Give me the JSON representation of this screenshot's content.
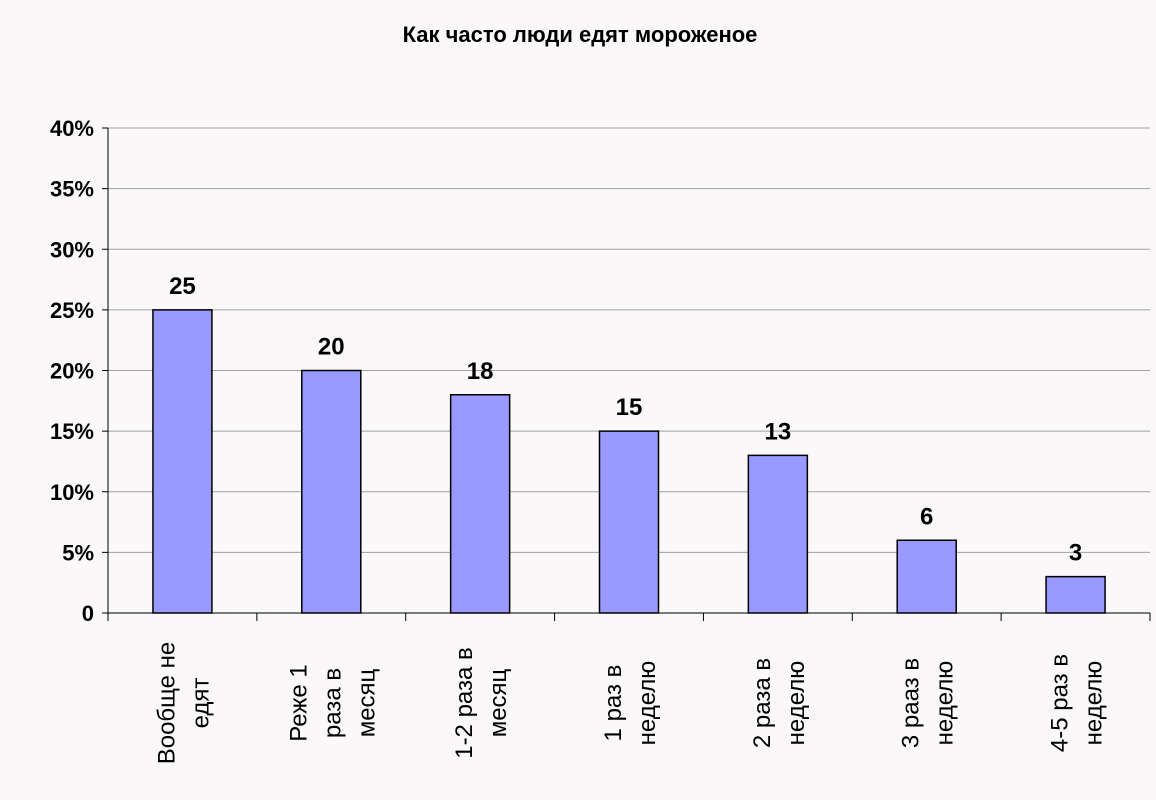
{
  "chart_data": {
    "type": "bar",
    "title": "Как часто люди едят мороженое",
    "categories": [
      [
        "Вообще не",
        "едят"
      ],
      [
        "Реже 1",
        "раза в",
        "месяц"
      ],
      [
        "1-2 раза в",
        "месяц"
      ],
      [
        "1 раз в",
        "неделю"
      ],
      [
        "2 раза в",
        "неделю"
      ],
      [
        "3 рааз в",
        "неделю"
      ],
      [
        "4-5 раз в",
        "неделю"
      ]
    ],
    "values": [
      25,
      20,
      18,
      15,
      13,
      6,
      3
    ],
    "data_labels": [
      "25",
      "20",
      "18",
      "15",
      "13",
      "6",
      "3"
    ],
    "ylim": [
      0,
      40
    ],
    "yticks": [
      0,
      5,
      10,
      15,
      20,
      25,
      30,
      35,
      40
    ],
    "ytick_labels": [
      "0",
      "5%",
      "10%",
      "15%",
      "20%",
      "25%",
      "30%",
      "35%",
      "40%"
    ],
    "grid": true,
    "legend": "none",
    "colors": {
      "bar": "#9999ff",
      "bar_border": "#000000",
      "grid": "#a0a0a0",
      "background": "#faf8f8"
    }
  }
}
